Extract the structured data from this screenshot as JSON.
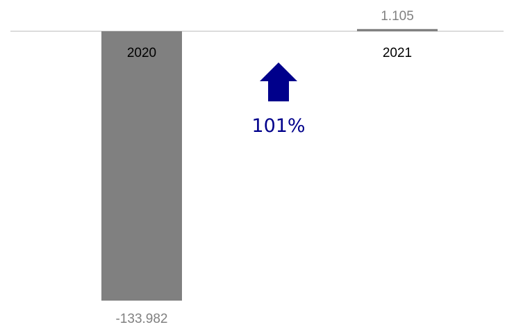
{
  "chart_data": {
    "type": "bar",
    "categories": [
      "2020",
      "2021"
    ],
    "values": [
      -133982,
      1105
    ],
    "value_labels": [
      "-133.982",
      "1.105"
    ],
    "ylim": [
      -133982,
      1105
    ],
    "bar_color": "#808080",
    "axis_color": "#c8c8c8",
    "grid": false,
    "change": {
      "label": "101%",
      "direction": "up",
      "color": "#00008b",
      "icon": "up-arrow-icon"
    }
  }
}
